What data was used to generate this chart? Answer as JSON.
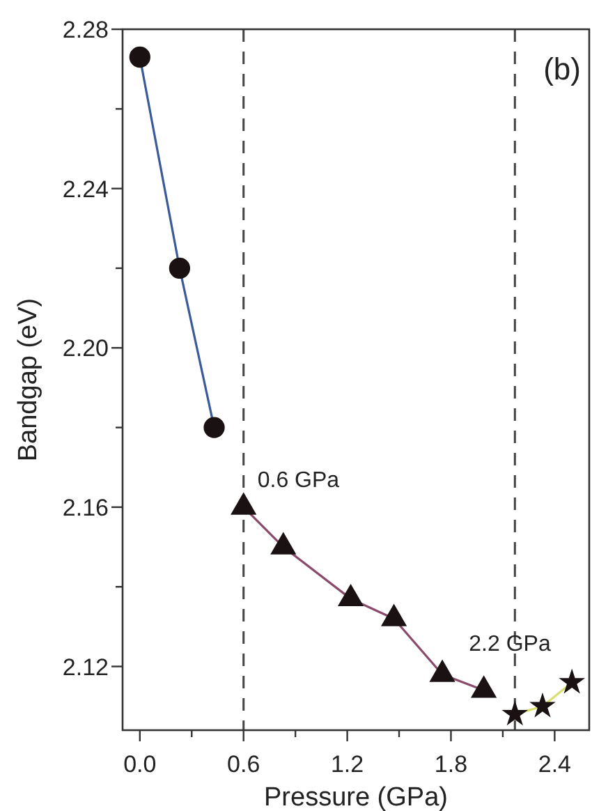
{
  "chart_data": {
    "type": "line",
    "xlabel": "Pressure (GPa)",
    "ylabel": "Bandgap (eV)",
    "xlim": [
      -0.1,
      2.6
    ],
    "ylim": [
      2.104,
      2.28
    ],
    "xticks": [
      {
        "value": 0,
        "label": "0.0"
      },
      {
        "value": 0.3,
        "label": null
      },
      0.6,
      {
        "value": 0.9,
        "label": null
      },
      1.2,
      {
        "value": 1.5,
        "label": null
      },
      1.8,
      {
        "value": 2.1,
        "label": null
      },
      2.4
    ],
    "yticks": [
      2.12,
      {
        "value": 2.14,
        "label": null
      },
      2.16,
      {
        "value": 2.18,
        "label": null
      },
      {
        "value": 2.2,
        "label": "2.20"
      },
      {
        "value": 2.22,
        "label": null
      },
      2.24,
      {
        "value": 2.26,
        "label": null
      },
      2.28
    ],
    "series": [
      {
        "color": "#3a5a9a",
        "marker": "circle",
        "x": [
          0.0,
          0.23,
          0.43
        ],
        "values": [
          2.273,
          2.22,
          2.18
        ]
      },
      {
        "color": "#8a4a6a",
        "marker": "triangle",
        "x": [
          0.6,
          0.83,
          1.22,
          1.47,
          1.75,
          1.99
        ],
        "values": [
          2.16,
          2.15,
          2.137,
          2.132,
          2.118,
          2.114
        ]
      },
      {
        "color": "#d8e070",
        "marker": "star",
        "x": [
          2.17,
          2.33,
          2.5
        ],
        "values": [
          2.108,
          2.11,
          2.116
        ]
      }
    ],
    "ref_lines": [
      {
        "axis": "x",
        "value": 0.6,
        "label": "0.6 GPa",
        "line_style": "dashed"
      },
      {
        "axis": "x",
        "value": 2.17,
        "label": "2.2 GPa",
        "line_style": "dashed"
      }
    ],
    "annotations": [
      "(b)"
    ],
    "grid": false
  }
}
